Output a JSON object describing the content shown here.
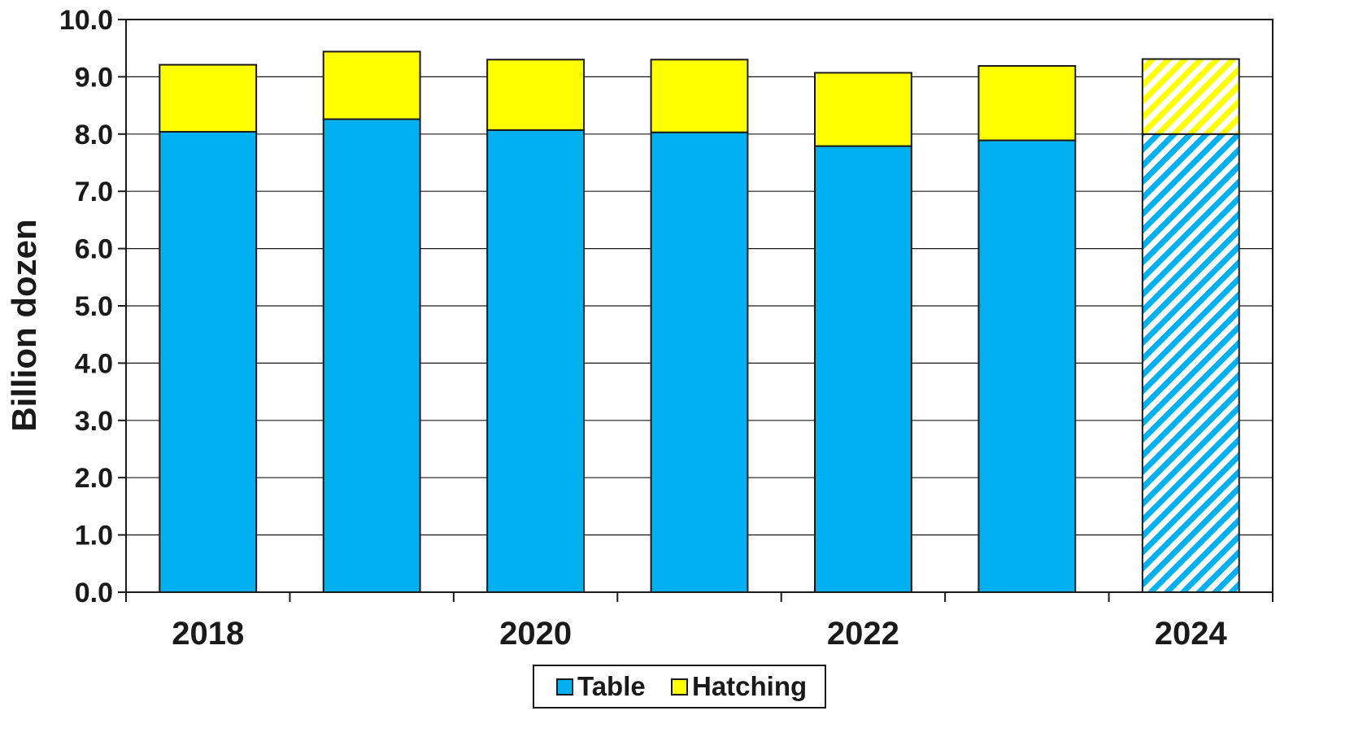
{
  "chart_data": {
    "type": "bar",
    "stacked": true,
    "categories": [
      "2018",
      "2019",
      "2020",
      "2021",
      "2022",
      "2023",
      "2024"
    ],
    "category_labels_shown": [
      "2018",
      "",
      "2020",
      "",
      "2022",
      "",
      "2024"
    ],
    "series": [
      {
        "name": "Table",
        "values": [
          8.04,
          8.26,
          8.07,
          8.03,
          7.79,
          7.89,
          8.0
        ],
        "color": "#00b0f0"
      },
      {
        "name": "Hatching",
        "values": [
          1.17,
          1.18,
          1.23,
          1.27,
          1.28,
          1.3,
          1.31
        ],
        "color": "#ffff00"
      }
    ],
    "hatched_categories": [
      "2024"
    ],
    "title": "",
    "xlabel": "",
    "ylabel": "Billion dozen",
    "ylim": [
      0,
      10
    ],
    "yticks": [
      "0.0",
      "1.0",
      "2.0",
      "3.0",
      "4.0",
      "5.0",
      "6.0",
      "7.0",
      "8.0",
      "9.0",
      "10.0"
    ],
    "grid": true,
    "legend_position": "bottom-center"
  }
}
